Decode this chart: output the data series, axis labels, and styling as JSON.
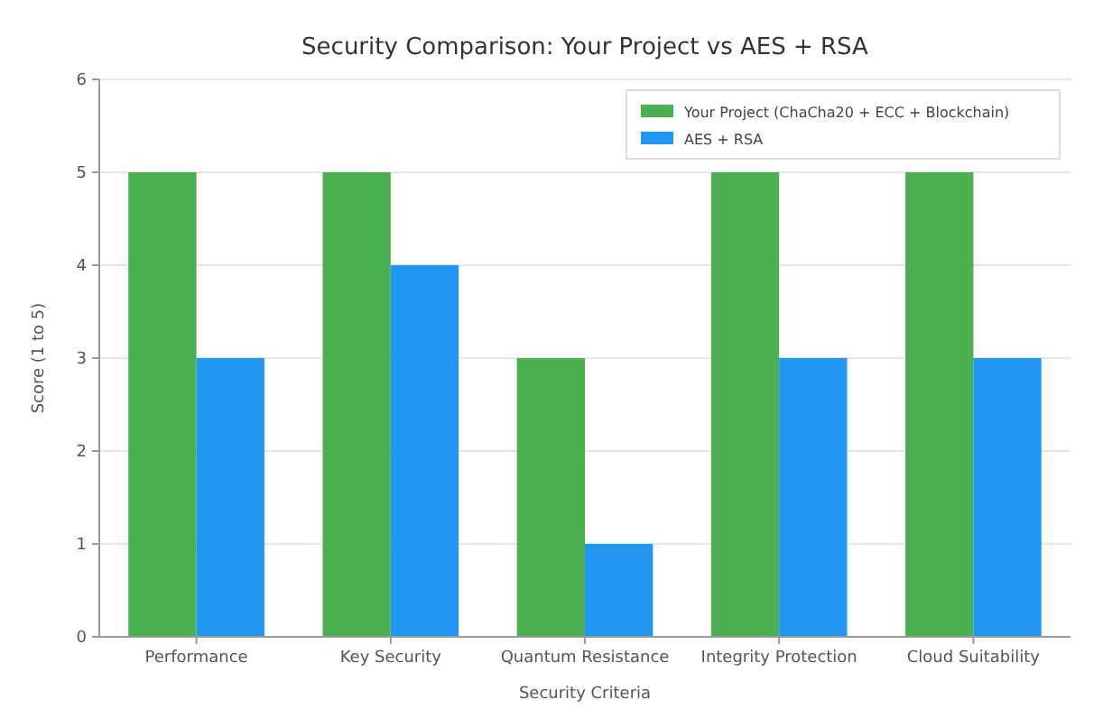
{
  "chart_data": {
    "type": "bar",
    "title": "Security Comparison: Your Project vs AES + RSA",
    "xlabel": "Security Criteria",
    "ylabel": "Score (1 to 5)",
    "categories": [
      "Performance",
      "Key Security",
      "Quantum Resistance",
      "Integrity Protection",
      "Cloud Suitability"
    ],
    "series": [
      {
        "name": "Your Project (ChaCha20 + ECC + Blockchain)",
        "color": "#4caf50",
        "values": [
          5,
          5,
          3,
          5,
          5
        ]
      },
      {
        "name": "AES + RSA",
        "color": "#2196f3",
        "values": [
          3,
          4,
          1,
          3,
          3
        ]
      }
    ],
    "ylim": [
      0,
      6
    ],
    "yticks": [
      0,
      1,
      2,
      3,
      4,
      5,
      6
    ],
    "grid": "y",
    "legend": "top right"
  }
}
